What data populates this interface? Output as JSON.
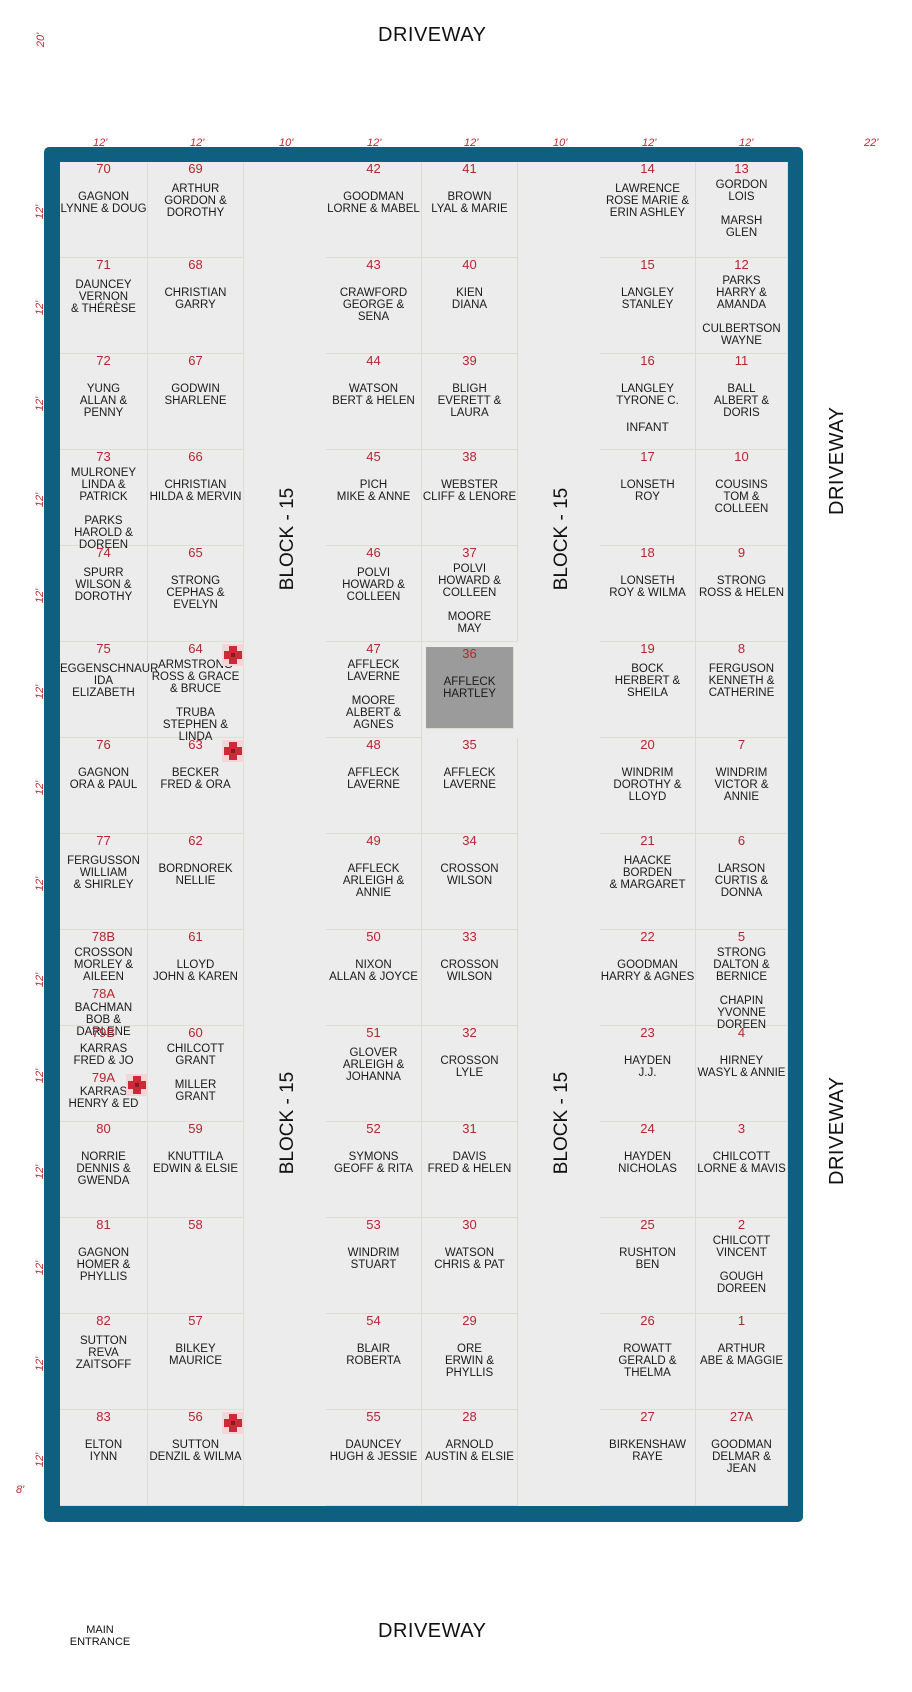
{
  "labels": {
    "driveway": "DRIVEWAY",
    "block": "BLOCK - 15",
    "main_entrance": "MAIN\nENTRANCE",
    "dim_20": "20'",
    "dim_12": "12'",
    "dim_10": "10'",
    "dim_22": "22'",
    "dim_8": "8'",
    "infant": "INFANT"
  },
  "colors": {
    "frame": "#0e5f80",
    "plot_bg": "#ececec",
    "number": "#b3262d",
    "highlight": "#9b9b9b",
    "marker": "#cc2a36"
  },
  "col1": [
    {
      "num": "70",
      "names": "GAGNON\nLYNNE  &  DOUG"
    },
    {
      "num": "71",
      "names": "DAUNCEY\nVERNON\n& THÉRÈSE"
    },
    {
      "num": "72",
      "names": "YUNG\nALLAN & PENNY"
    },
    {
      "num": "73",
      "names": "MULRONEY\nLINDA & PATRICK",
      "names2": "PARKS\nHAROLD & DOREEN"
    },
    {
      "num": "74",
      "names": "SPURR\nWILSON &\nDOROTHY"
    },
    {
      "num": "75",
      "names": "EGGENSCHNAUR\nIDA\nELIZABETH"
    },
    {
      "num": "76",
      "names": "GAGNON\nORA & PAUL"
    },
    {
      "num": "77",
      "names": "FERGUSSON\nWILLIAM\n& SHIRLEY"
    },
    {
      "num": "78B",
      "names": "CROSSON\nMORLEY & AILEEN",
      "num2": "78A",
      "names2": "BACHMAN\nBOB & DARLENE"
    },
    {
      "num": "79B",
      "names": "KARRAS\nFRED & JO",
      "num2": "79A",
      "names2": "KARRAS\nHENRY & ED"
    },
    {
      "num": "80",
      "names": "NORRIE\nDENNIS & GWENDA"
    },
    {
      "num": "81",
      "names": "GAGNON\nHOMER & PHYLLIS"
    },
    {
      "num": "82",
      "names": "SUTTON\nREVA\nZAITSOFF"
    },
    {
      "num": "83",
      "names": "ELTON\nIYNN"
    }
  ],
  "col2": [
    {
      "num": "69",
      "names": "ARTHUR\nGORDON &\nDOROTHY"
    },
    {
      "num": "68",
      "names": "CHRISTIAN\nGARRY"
    },
    {
      "num": "67",
      "names": "GODWIN\nSHARLENE"
    },
    {
      "num": "66",
      "names": "CHRISTIAN\nHILDA & MERVIN"
    },
    {
      "num": "65",
      "names": "STRONG\nCEPHAS & EVELYN"
    },
    {
      "num": "64",
      "names": "ARMSTRONG\nROSS & GRACE\n& BRUCE",
      "names2": "TRUBA\nSTEPHEN & LINDA"
    },
    {
      "num": "63",
      "names": "BECKER\nFRED & ORA"
    },
    {
      "num": "62",
      "names": "BORDNOREK\nNELLIE"
    },
    {
      "num": "61",
      "names": "LLOYD\nJOHN & KAREN"
    },
    {
      "num": "60",
      "names": "CHILCOTT\nGRANT",
      "names2": "MILLER\nGRANT"
    },
    {
      "num": "59",
      "names": "KNUTTILA\nEDWIN & ELSIE"
    },
    {
      "num": "58",
      "names": ""
    },
    {
      "num": "57",
      "names": "BILKEY\nMAURICE"
    },
    {
      "num": "56",
      "names": "SUTTON\nDENZIL & WILMA"
    }
  ],
  "col3": [
    {
      "num": "42",
      "names": "GOODMAN\nLORNE & MABEL"
    },
    {
      "num": "43",
      "names": "CRAWFORD\nGEORGE & SENA"
    },
    {
      "num": "44",
      "names": "WATSON\nBERT & HELEN"
    },
    {
      "num": "45",
      "names": "PICH\nMIKE & ANNE"
    },
    {
      "num": "46",
      "names": "POLVI\nHOWARD &\nCOLLEEN"
    },
    {
      "num": "47",
      "names": "AFFLECK\nLAVERNE",
      "names2": "MOORE\nALBERT & AGNES"
    },
    {
      "num": "48",
      "names": "AFFLECK\nLAVERNE"
    },
    {
      "num": "49",
      "names": "AFFLECK\nARLEIGH & ANNIE"
    },
    {
      "num": "50",
      "names": "NIXON\nALLAN & JOYCE"
    },
    {
      "num": "51",
      "names": "GLOVER\nARLEIGH &\nJOHANNA"
    },
    {
      "num": "52",
      "names": "SYMONS\nGEOFF & RITA"
    },
    {
      "num": "53",
      "names": "WINDRIM\nSTUART"
    },
    {
      "num": "54",
      "names": "BLAIR\nROBERTA"
    },
    {
      "num": "55",
      "names": "DAUNCEY\nHUGH & JESSIE"
    }
  ],
  "col4": [
    {
      "num": "41",
      "names": "BROWN\nLYAL & MARIE"
    },
    {
      "num": "40",
      "names": "KIEN\nDIANA"
    },
    {
      "num": "39",
      "names": "BLIGH\nEVERETT & LAURA"
    },
    {
      "num": "38",
      "names": "WEBSTER\nCLIFF & LENORE"
    },
    {
      "num": "37",
      "names": "POLVI\nHOWARD &\nCOLLEEN",
      "names2": "MOORE\nMAY"
    },
    {
      "num": "36",
      "names": "AFFLECK\nHARTLEY"
    },
    {
      "num": "35",
      "names": "AFFLECK\nLAVERNE"
    },
    {
      "num": "34",
      "names": "CROSSON\nWILSON"
    },
    {
      "num": "33",
      "names": "CROSSON\nWILSON"
    },
    {
      "num": "32",
      "names": "CROSSON\nLYLE"
    },
    {
      "num": "31",
      "names": "DAVIS\nFRED & HELEN"
    },
    {
      "num": "30",
      "names": "WATSON\nCHRIS & PAT"
    },
    {
      "num": "29",
      "names": "ORE\nERWIN & PHYLLIS"
    },
    {
      "num": "28",
      "names": "ARNOLD\nAUSTIN & ELSIE"
    }
  ],
  "col5": [
    {
      "num": "14",
      "names": "LAWRENCE\nROSE MARIE &\nERIN ASHLEY"
    },
    {
      "num": "15",
      "names": "LANGLEY\nSTANLEY"
    },
    {
      "num": "16",
      "names": "LANGLEY\nTYRONE C."
    },
    {
      "num": "17",
      "names": "LONSETH\nROY"
    },
    {
      "num": "18",
      "names": "LONSETH\nROY & WILMA"
    },
    {
      "num": "19",
      "names": "BOCK\nHERBERT &\nSHEILA"
    },
    {
      "num": "20",
      "names": "WINDRIM\nDOROTHY & LLOYD"
    },
    {
      "num": "21",
      "names": "HAACKE\nBORDEN\n& MARGARET"
    },
    {
      "num": "22",
      "names": "GOODMAN\nHARRY & AGNES"
    },
    {
      "num": "23",
      "names": "HAYDEN\nJ.J."
    },
    {
      "num": "24",
      "names": "HAYDEN\nNICHOLAS"
    },
    {
      "num": "25",
      "names": "RUSHTON\nBEN"
    },
    {
      "num": "26",
      "names": "ROWATT\nGERALD & THELMA"
    },
    {
      "num": "27",
      "names": "BIRKENSHAW\nRAYE"
    }
  ],
  "col6": [
    {
      "num": "13",
      "names": "GORDON\nLOIS",
      "names2": "MARSH\nGLEN"
    },
    {
      "num": "12",
      "names": "PARKS\nHARRY & AMANDA",
      "names2": "CULBERTSON\nWAYNE"
    },
    {
      "num": "11",
      "names": "BALL\nALBERT & DORIS"
    },
    {
      "num": "10",
      "names": "COUSINS\nTOM & COLLEEN"
    },
    {
      "num": "9",
      "names": "STRONG\nROSS & HELEN"
    },
    {
      "num": "8",
      "names": "FERGUSON\nKENNETH &\nCATHERINE"
    },
    {
      "num": "7",
      "names": "WINDRIM\nVICTOR & ANNIE"
    },
    {
      "num": "6",
      "names": "LARSON\nCURTIS & DONNA"
    },
    {
      "num": "5",
      "names": "STRONG\nDALTON & BERNICE",
      "names2": "CHAPIN\nYVONNE DOREEN"
    },
    {
      "num": "4",
      "names": "HIRNEY\nWASYL & ANNIE"
    },
    {
      "num": "3",
      "names": "CHILCOTT\nLORNE & MAVIS"
    },
    {
      "num": "2",
      "names": "CHILCOTT\nVINCENT",
      "names2": "GOUGH\nDOREEN"
    },
    {
      "num": "1",
      "names": "ARTHUR\nABE & MAGGIE"
    },
    {
      "num": "27A",
      "names": "GOODMAN\nDELMAR & JEAN"
    }
  ]
}
